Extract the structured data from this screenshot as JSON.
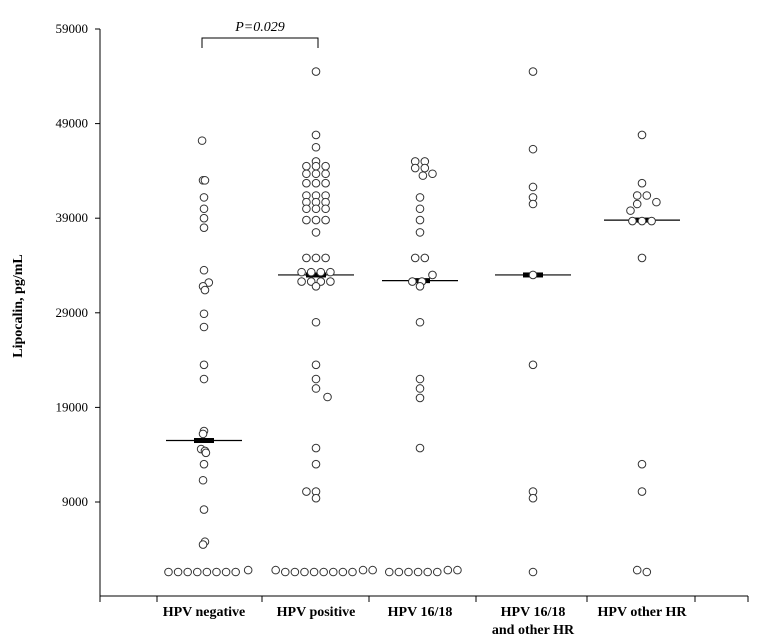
{
  "chart_data": {
    "type": "scatter",
    "ylabel": "Lipocalin, pg/mL",
    "ylim": [
      0,
      59000
    ],
    "yticks": [
      9000,
      19000,
      29000,
      39000,
      49000,
      59000
    ],
    "ytick_labels": [
      "9000",
      "19000",
      "29000",
      "39000",
      "49000",
      "59000"
    ],
    "categories": [
      {
        "label": [
          "HPV negative"
        ]
      },
      {
        "label": [
          "HPV positive"
        ]
      },
      {
        "label": [
          "HPV 16/18"
        ]
      },
      {
        "label": [
          "HPV 16/18",
          "and other HR"
        ]
      },
      {
        "label": [
          "HPV other HR"
        ]
      }
    ],
    "annotation": {
      "text": "P=0.029",
      "from_category": 0,
      "to_category": 1
    },
    "grid": false,
    "marker": "open-circle",
    "series": [
      {
        "median": 15500,
        "points": [
          {
            "dx": -0.2,
            "y": 47200
          },
          {
            "dx": -0.1,
            "y": 43000
          },
          {
            "dx": 0.1,
            "y": 43000
          },
          {
            "dx": 0,
            "y": 41200
          },
          {
            "dx": 0,
            "y": 40000
          },
          {
            "dx": 0,
            "y": 39000
          },
          {
            "dx": 0,
            "y": 38000
          },
          {
            "dx": 0,
            "y": 33500
          },
          {
            "dx": 0.5,
            "y": 32200
          },
          {
            "dx": -0.1,
            "y": 31800
          },
          {
            "dx": 0.1,
            "y": 31400
          },
          {
            "dx": 0,
            "y": 28900
          },
          {
            "dx": 0,
            "y": 27500
          },
          {
            "dx": 0,
            "y": 23500
          },
          {
            "dx": 0,
            "y": 22000
          },
          {
            "dx": 0,
            "y": 16500
          },
          {
            "dx": -0.1,
            "y": 16200
          },
          {
            "dx": -0.3,
            "y": 14600
          },
          {
            "dx": 0.1,
            "y": 14400
          },
          {
            "dx": 0.2,
            "y": 14200
          },
          {
            "dx": 0,
            "y": 13000
          },
          {
            "dx": -0.1,
            "y": 11300
          },
          {
            "dx": 0,
            "y": 8200
          },
          {
            "dx": 0.1,
            "y": 4800
          },
          {
            "dx": -0.1,
            "y": 4500
          },
          {
            "dx": -3.7,
            "y": 1600
          },
          {
            "dx": -2.7,
            "y": 1600
          },
          {
            "dx": -1.7,
            "y": 1600
          },
          {
            "dx": -0.7,
            "y": 1600
          },
          {
            "dx": 0.3,
            "y": 1600
          },
          {
            "dx": 1.3,
            "y": 1600
          },
          {
            "dx": 2.3,
            "y": 1600
          },
          {
            "dx": 3.3,
            "y": 1600
          },
          {
            "dx": 4.6,
            "y": 1800
          }
        ]
      },
      {
        "median": 33000,
        "points": [
          {
            "dx": 0,
            "y": 54500
          },
          {
            "dx": 0,
            "y": 47800
          },
          {
            "dx": 0,
            "y": 46500
          },
          {
            "dx": 0,
            "y": 45000
          },
          {
            "dx": -1,
            "y": 44500
          },
          {
            "dx": 0,
            "y": 44500
          },
          {
            "dx": 1,
            "y": 44500
          },
          {
            "dx": -1,
            "y": 43700
          },
          {
            "dx": 0,
            "y": 43700
          },
          {
            "dx": 1,
            "y": 43700
          },
          {
            "dx": -1,
            "y": 42700
          },
          {
            "dx": 0,
            "y": 42700
          },
          {
            "dx": 1,
            "y": 42700
          },
          {
            "dx": -1,
            "y": 41400
          },
          {
            "dx": 0,
            "y": 41400
          },
          {
            "dx": 1,
            "y": 41400
          },
          {
            "dx": -1,
            "y": 40700
          },
          {
            "dx": 0,
            "y": 40700
          },
          {
            "dx": 1,
            "y": 40700
          },
          {
            "dx": -1,
            "y": 40000
          },
          {
            "dx": 0,
            "y": 40000
          },
          {
            "dx": 1,
            "y": 40000
          },
          {
            "dx": -1,
            "y": 38800
          },
          {
            "dx": 0,
            "y": 38800
          },
          {
            "dx": 1,
            "y": 38800
          },
          {
            "dx": 0,
            "y": 37500
          },
          {
            "dx": -1,
            "y": 34800
          },
          {
            "dx": 0,
            "y": 34800
          },
          {
            "dx": 1,
            "y": 34800
          },
          {
            "dx": -1.5,
            "y": 33300
          },
          {
            "dx": -0.5,
            "y": 33300
          },
          {
            "dx": 0.5,
            "y": 33300
          },
          {
            "dx": 1.5,
            "y": 33300
          },
          {
            "dx": -1.5,
            "y": 32300
          },
          {
            "dx": -0.5,
            "y": 32300
          },
          {
            "dx": 0.5,
            "y": 32300
          },
          {
            "dx": 1.5,
            "y": 32300
          },
          {
            "dx": 0,
            "y": 31800
          },
          {
            "dx": 0,
            "y": 28000
          },
          {
            "dx": 0,
            "y": 23500
          },
          {
            "dx": 0,
            "y": 22000
          },
          {
            "dx": 0,
            "y": 21000
          },
          {
            "dx": 1.2,
            "y": 20100
          },
          {
            "dx": 0,
            "y": 14700
          },
          {
            "dx": 0,
            "y": 13000
          },
          {
            "dx": -1,
            "y": 10100
          },
          {
            "dx": 0,
            "y": 10100
          },
          {
            "dx": 0,
            "y": 9400
          },
          {
            "dx": -4.2,
            "y": 1800
          },
          {
            "dx": -3.2,
            "y": 1600
          },
          {
            "dx": -2.2,
            "y": 1600
          },
          {
            "dx": -1.2,
            "y": 1600
          },
          {
            "dx": -0.2,
            "y": 1600
          },
          {
            "dx": 0.8,
            "y": 1600
          },
          {
            "dx": 1.8,
            "y": 1600
          },
          {
            "dx": 2.8,
            "y": 1600
          },
          {
            "dx": 3.8,
            "y": 1600
          },
          {
            "dx": 4.9,
            "y": 1800
          },
          {
            "dx": 5.9,
            "y": 1800
          }
        ]
      },
      {
        "median": 32400,
        "points": [
          {
            "dx": -0.5,
            "y": 45000
          },
          {
            "dx": 0.5,
            "y": 45000
          },
          {
            "dx": -0.5,
            "y": 44300
          },
          {
            "dx": 0.5,
            "y": 44300
          },
          {
            "dx": 0.3,
            "y": 43500
          },
          {
            "dx": 1.3,
            "y": 43700
          },
          {
            "dx": 0,
            "y": 41200
          },
          {
            "dx": 0,
            "y": 40000
          },
          {
            "dx": 0,
            "y": 38800
          },
          {
            "dx": 0,
            "y": 37500
          },
          {
            "dx": -0.5,
            "y": 34800
          },
          {
            "dx": 0.5,
            "y": 34800
          },
          {
            "dx": 1.3,
            "y": 33000
          },
          {
            "dx": -0.8,
            "y": 32300
          },
          {
            "dx": 0.2,
            "y": 32300
          },
          {
            "dx": 0,
            "y": 31800
          },
          {
            "dx": 0,
            "y": 28000
          },
          {
            "dx": 0,
            "y": 22000
          },
          {
            "dx": 0,
            "y": 21000
          },
          {
            "dx": 0,
            "y": 20000
          },
          {
            "dx": 0,
            "y": 14700
          },
          {
            "dx": -3.2,
            "y": 1600
          },
          {
            "dx": -2.2,
            "y": 1600
          },
          {
            "dx": -1.2,
            "y": 1600
          },
          {
            "dx": -0.2,
            "y": 1600
          },
          {
            "dx": 0.8,
            "y": 1600
          },
          {
            "dx": 1.8,
            "y": 1600
          },
          {
            "dx": 2.9,
            "y": 1800
          },
          {
            "dx": 3.9,
            "y": 1800
          }
        ]
      },
      {
        "median": 33000,
        "points": [
          {
            "dx": 0,
            "y": 54500
          },
          {
            "dx": 0,
            "y": 46300
          },
          {
            "dx": 0,
            "y": 42300
          },
          {
            "dx": 0,
            "y": 41200
          },
          {
            "dx": 0,
            "y": 40500
          },
          {
            "dx": 0,
            "y": 33000
          },
          {
            "dx": 0,
            "y": 23500
          },
          {
            "dx": 0,
            "y": 10100
          },
          {
            "dx": 0,
            "y": 9400
          },
          {
            "dx": 0,
            "y": 1600
          }
        ]
      },
      {
        "median": 38800,
        "points": [
          {
            "dx": 0,
            "y": 47800
          },
          {
            "dx": 0,
            "y": 42700
          },
          {
            "dx": -0.5,
            "y": 41400
          },
          {
            "dx": 0.5,
            "y": 41400
          },
          {
            "dx": 1.5,
            "y": 40700
          },
          {
            "dx": -0.5,
            "y": 40500
          },
          {
            "dx": -1.2,
            "y": 39800
          },
          {
            "dx": -1,
            "y": 38700
          },
          {
            "dx": 0,
            "y": 38700
          },
          {
            "dx": 1,
            "y": 38700
          },
          {
            "dx": 0,
            "y": 34800
          },
          {
            "dx": 0,
            "y": 13000
          },
          {
            "dx": 0,
            "y": 10100
          },
          {
            "dx": -0.5,
            "y": 1800
          },
          {
            "dx": 0.5,
            "y": 1600
          }
        ]
      }
    ]
  }
}
